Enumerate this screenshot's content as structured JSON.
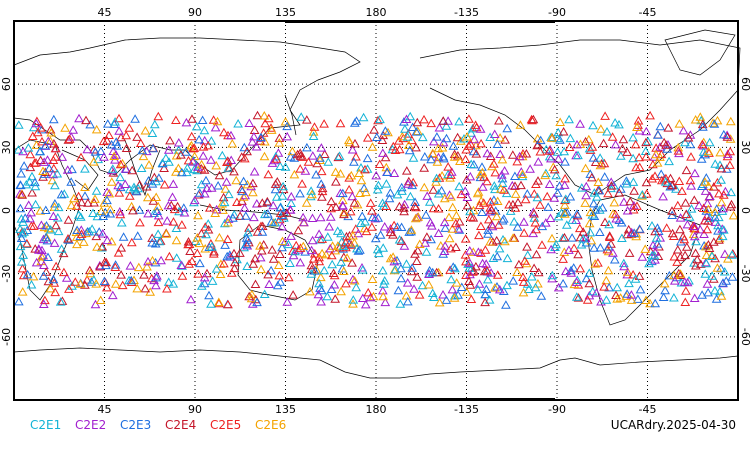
{
  "map": {
    "projection": "plate-carree",
    "center_longitude": 180,
    "lon_range": [
      0,
      360
    ],
    "lat_range": [
      -90,
      90
    ],
    "grid_step_degrees": 45,
    "lat_step_degrees": 30,
    "top_lon_labels": [
      "45",
      "90",
      "135",
      "180",
      "-135",
      "-90",
      "-45"
    ],
    "bottom_lon_labels": [
      "45",
      "90",
      "135",
      "180",
      "-135",
      "-90",
      "-45"
    ],
    "left_lat_labels": [
      "60",
      "30",
      "0",
      "-30",
      "-60"
    ],
    "right_lat_labels": [
      "60",
      "30",
      "0",
      "-30",
      "-60"
    ],
    "observation_band_lat": [
      -45,
      45
    ],
    "marker_shape": "triangle-outline"
  },
  "legend": [
    {
      "label": "C2E1",
      "color": "#13b3d6"
    },
    {
      "label": "C2E2",
      "color": "#a21fcf"
    },
    {
      "label": "C2E3",
      "color": "#1f6fe0"
    },
    {
      "label": "C2E4",
      "color": "#c4162a"
    },
    {
      "label": "C2E5",
      "color": "#ee2222"
    },
    {
      "label": "C2E6",
      "color": "#f4a300"
    }
  ],
  "caption": "UCARdry.2025-04-30"
}
